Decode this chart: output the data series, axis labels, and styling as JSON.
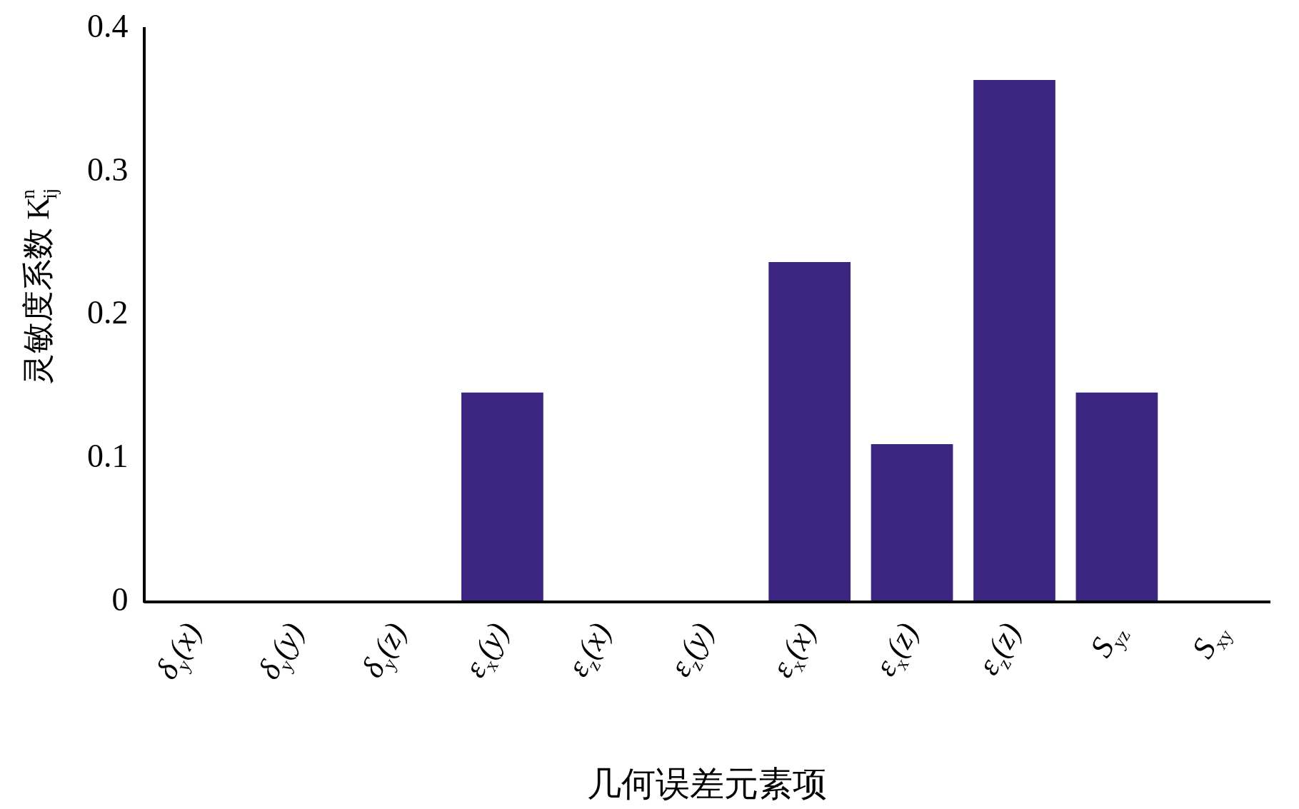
{
  "chart_data": {
    "type": "bar",
    "xlabel": "几何误差元素项",
    "ylabel": "灵敏度系数 K$^{n}$$_{ij}$",
    "categories": [
      "δ$_{y}$(x)",
      "δ$_{y}$(y)",
      "δ$_{y}$(z)",
      "ε$_{x}$(y)",
      "ε$_{z}$(x)",
      "ε$_{z}$(y)",
      "ε$_{x}$(x)",
      "ε$_{x}$(z)",
      "ε$_{z}$(z)",
      "S$_{yz}$",
      "S$_{xy}$"
    ],
    "values": [
      0,
      0,
      0,
      0.146,
      0,
      0,
      0.237,
      0.11,
      0.364,
      0.146,
      0
    ],
    "color": "#3b2580",
    "ylim": [
      0,
      0.4
    ],
    "yticks": [
      {
        "value": 0,
        "label": "0"
      },
      0.1,
      0.2,
      0.3,
      0.4
    ],
    "grid": false,
    "legend": false
  }
}
